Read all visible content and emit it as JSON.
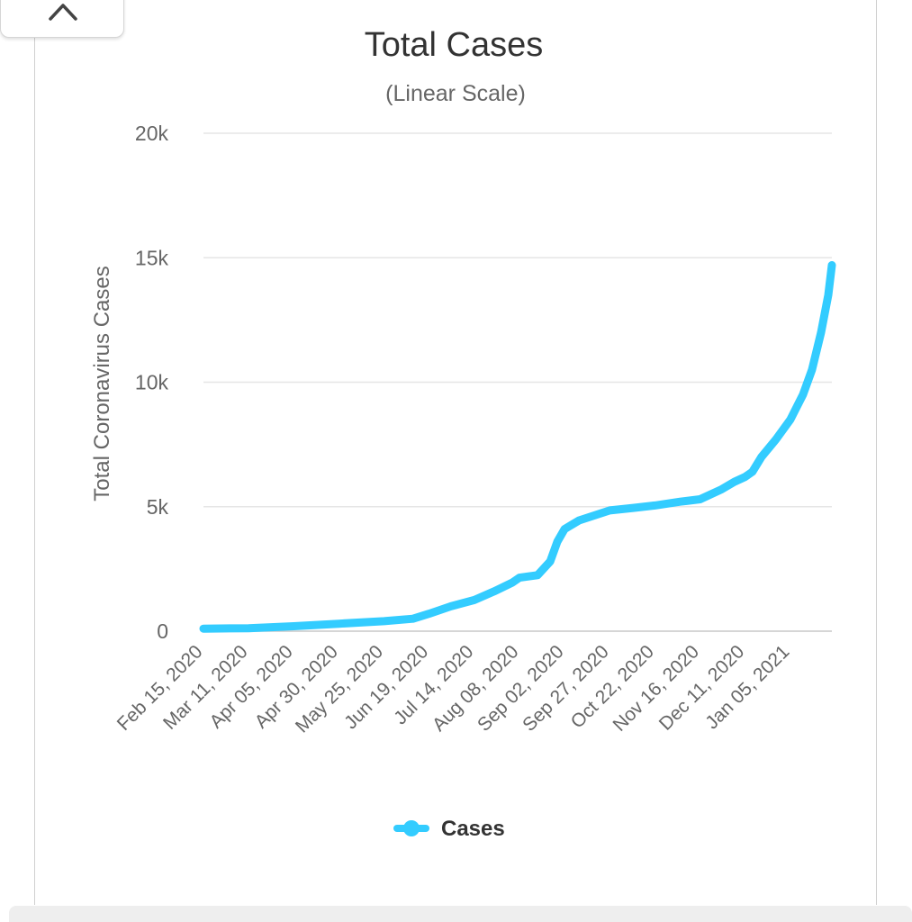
{
  "chart_data": {
    "type": "line",
    "title": "Total Cases",
    "subtitle": "(Linear Scale)",
    "ylabel": "Total Coronavirus Cases",
    "xlabel": "",
    "ylim": [
      0,
      20000
    ],
    "yticks": [
      0,
      5000,
      10000,
      15000,
      20000
    ],
    "ytick_labels": [
      "0",
      "5k",
      "10k",
      "15k",
      "20k"
    ],
    "x_range": [
      "2020-02-15",
      "2021-01-28"
    ],
    "xtick_dates": [
      "2020-02-15",
      "2020-03-11",
      "2020-04-05",
      "2020-04-30",
      "2020-05-25",
      "2020-06-19",
      "2020-07-14",
      "2020-08-08",
      "2020-09-02",
      "2020-09-27",
      "2020-10-22",
      "2020-11-16",
      "2020-12-11",
      "2021-01-05"
    ],
    "xtick_labels": [
      "Feb 15, 2020",
      "Mar 11, 2020",
      "Apr 05, 2020",
      "Apr 30, 2020",
      "May 25, 2020",
      "Jun 19, 2020",
      "Jul 14, 2020",
      "Aug 08, 2020",
      "Sep 02, 2020",
      "Sep 27, 2020",
      "Oct 22, 2020",
      "Nov 16, 2020",
      "Dec 11, 2020",
      "Jan 05, 2021"
    ],
    "grid": true,
    "legend_position": "bottom-center",
    "series": [
      {
        "name": "Cases",
        "color": "#33ccff",
        "points": [
          [
            "2020-02-15",
            100
          ],
          [
            "2020-03-11",
            120
          ],
          [
            "2020-04-05",
            200
          ],
          [
            "2020-04-30",
            300
          ],
          [
            "2020-05-25",
            400
          ],
          [
            "2020-06-10",
            500
          ],
          [
            "2020-06-19",
            700
          ],
          [
            "2020-07-01",
            1000
          ],
          [
            "2020-07-14",
            1250
          ],
          [
            "2020-07-25",
            1600
          ],
          [
            "2020-08-04",
            1950
          ],
          [
            "2020-08-08",
            2150
          ],
          [
            "2020-08-18",
            2250
          ],
          [
            "2020-08-25",
            2800
          ],
          [
            "2020-08-29",
            3600
          ],
          [
            "2020-09-02",
            4100
          ],
          [
            "2020-09-10",
            4450
          ],
          [
            "2020-09-27",
            4850
          ],
          [
            "2020-10-10",
            4950
          ],
          [
            "2020-10-22",
            5050
          ],
          [
            "2020-11-05",
            5200
          ],
          [
            "2020-11-16",
            5300
          ],
          [
            "2020-11-28",
            5700
          ],
          [
            "2020-12-05",
            6000
          ],
          [
            "2020-12-11",
            6200
          ],
          [
            "2020-12-15",
            6400
          ],
          [
            "2020-12-20",
            7000
          ],
          [
            "2020-12-28",
            7700
          ],
          [
            "2021-01-05",
            8500
          ],
          [
            "2021-01-12",
            9500
          ],
          [
            "2021-01-17",
            10500
          ],
          [
            "2021-01-22",
            12000
          ],
          [
            "2021-01-26",
            13500
          ],
          [
            "2021-01-28",
            14700
          ]
        ]
      }
    ]
  }
}
